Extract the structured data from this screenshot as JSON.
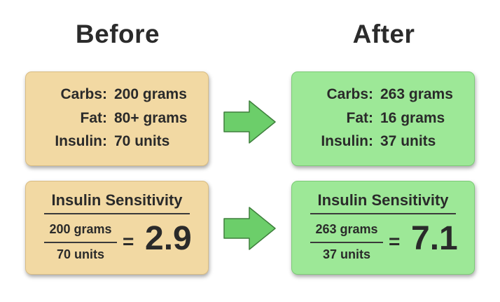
{
  "columns": {
    "before_title": "Before",
    "after_title": "After"
  },
  "before": {
    "macros": [
      {
        "label": "Carbs:",
        "value": "200 grams"
      },
      {
        "label": "Fat:",
        "value": "80+ grams"
      },
      {
        "label": "Insulin:",
        "value": "70 units"
      }
    ],
    "sensitivity": {
      "title": "Insulin Sensitivity",
      "numerator": "200 grams",
      "denominator": "70 units",
      "equals": "=",
      "result": "2.9"
    }
  },
  "after": {
    "macros": [
      {
        "label": "Carbs:",
        "value": "263 grams"
      },
      {
        "label": "Fat:",
        "value": "16 grams"
      },
      {
        "label": "Insulin:",
        "value": "37 units"
      }
    ],
    "sensitivity": {
      "title": "Insulin Sensitivity",
      "numerator": "263 grams",
      "denominator": "37 units",
      "equals": "=",
      "result": "7.1"
    }
  },
  "colors": {
    "before_card": "#f2d9a3",
    "after_card": "#9de897",
    "arrow_fill": "#6cce6a",
    "arrow_stroke": "#3e7f3c"
  },
  "icons": {
    "transition_arrow": "right-arrow-icon"
  }
}
